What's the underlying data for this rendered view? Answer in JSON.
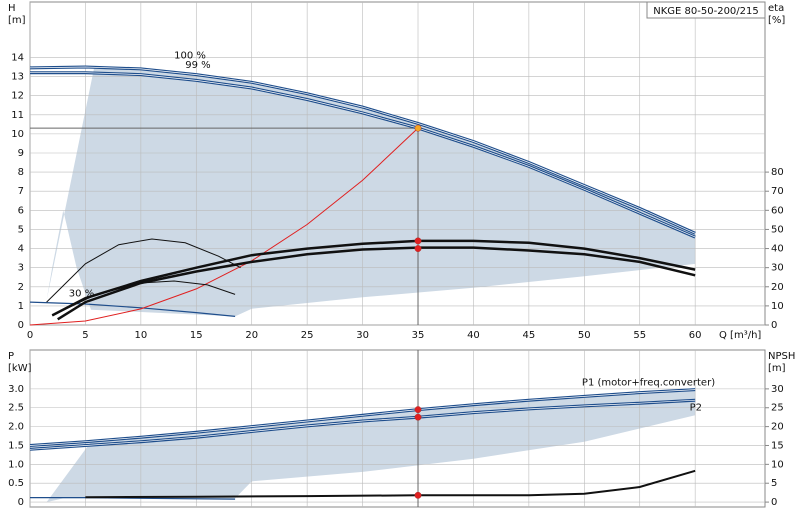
{
  "chart_data": [
    {
      "type": "line",
      "title": "NKGE 80-50-200/215",
      "ylabel": "H",
      "yunit": "[m]",
      "y2label": "eta",
      "y2unit": "[%]",
      "xlabel": "Q [m³/h]",
      "xlim": [
        0,
        66.3
      ],
      "ylim": [
        0,
        16.9
      ],
      "y2lim": [
        0,
        169
      ],
      "xticks": [
        0,
        5,
        10,
        15,
        20,
        25,
        30,
        35,
        40,
        45,
        50,
        55,
        60
      ],
      "yticks": [
        0,
        1,
        2,
        3,
        4,
        5,
        6,
        7,
        8,
        9,
        10,
        11,
        12,
        13,
        14
      ],
      "y2ticks": [
        0,
        10,
        20,
        30,
        40,
        50,
        60,
        70,
        80
      ],
      "grid": true,
      "xtick_labels": true,
      "region": {
        "color": "#cdd9e5",
        "x": [
          5.8,
          10,
          15,
          20,
          25,
          30,
          35,
          40,
          45,
          50,
          55,
          60,
          60,
          50,
          40,
          30,
          20,
          18.5,
          5.5,
          4.2,
          3,
          2,
          1.5
        ],
        "values": [
          13.5,
          13.4,
          13.1,
          12.7,
          12.1,
          11.4,
          10.55,
          9.6,
          8.5,
          7.3,
          6.1,
          4.85,
          3.2,
          2.55,
          1.95,
          1.45,
          0.85,
          0.45,
          0.8,
          3,
          6,
          3,
          1.3
        ]
      },
      "series": [
        {
          "color": "#1f4e8c",
          "width": 3,
          "x": [
            0,
            5,
            10,
            15,
            20,
            25,
            30,
            35,
            40,
            45,
            50,
            55,
            60
          ],
          "values": [
            13.45,
            13.5,
            13.4,
            13.1,
            12.7,
            12.1,
            11.4,
            10.55,
            9.6,
            8.5,
            7.3,
            6.1,
            4.8
          ]
        },
        {
          "color": "#1f4e8c",
          "width": 3,
          "x": [
            0,
            5,
            10,
            15,
            20,
            25,
            30,
            35,
            40,
            45,
            50,
            55,
            60
          ],
          "values": [
            13.2,
            13.2,
            13.1,
            12.8,
            12.4,
            11.8,
            11.1,
            10.3,
            9.35,
            8.3,
            7.1,
            5.85,
            4.6
          ]
        },
        {
          "color": "#1f4e8c",
          "width": 1.2,
          "x": [
            0,
            5,
            10,
            15,
            18.5
          ],
          "values": [
            1.2,
            1.1,
            0.9,
            0.65,
            0.45
          ]
        },
        {
          "color": "#e02020",
          "width": 1,
          "x": [
            0,
            5,
            10,
            15,
            20,
            25,
            30,
            35
          ],
          "values": [
            0,
            0.21,
            0.84,
            1.89,
            3.36,
            5.26,
            7.57,
            10.3
          ]
        },
        {
          "color": "#111111",
          "width": 2.5,
          "axis": "y2",
          "x": [
            2,
            5,
            10,
            15,
            20,
            25,
            30,
            35,
            40,
            45,
            50,
            55,
            60
          ],
          "values": [
            5,
            14,
            23,
            30,
            36.5,
            40,
            42.5,
            44,
            44,
            43,
            40,
            35,
            29
          ]
        },
        {
          "color": "#111111",
          "width": 2.5,
          "axis": "y2",
          "x": [
            2.5,
            5,
            10,
            15,
            20,
            25,
            30,
            35,
            40,
            45,
            50,
            55,
            60
          ],
          "values": [
            3,
            12,
            22,
            28,
            33,
            37,
            39.5,
            40.5,
            40.5,
            39,
            37,
            33,
            26
          ]
        },
        {
          "color": "#111111",
          "width": 1,
          "axis": "y2",
          "x": [
            1.5,
            5,
            8,
            11,
            14,
            17,
            19
          ],
          "values": [
            12,
            32,
            42,
            45,
            43,
            36,
            30
          ]
        },
        {
          "color": "#111111",
          "width": 1,
          "axis": "y2",
          "x": [
            2,
            6,
            10,
            13,
            16,
            18.5
          ],
          "values": [
            5,
            16,
            22,
            23,
            21,
            16
          ]
        }
      ],
      "points": {
        "x": [
          35,
          35,
          35
        ],
        "values": [
          10.3,
          44,
          40
        ],
        "axes": [
          "y",
          "y2",
          "y2"
        ],
        "colors": [
          "#f5a623",
          "#e02020",
          "#e02020"
        ]
      },
      "annotations": [
        "100 %",
        "99 %",
        "30 %"
      ]
    },
    {
      "type": "line",
      "ylabel": "P",
      "yunit": "[kW]",
      "y2label": "NPSH",
      "y2unit": "[m]",
      "xlim": [
        0,
        66.3
      ],
      "ylim": [
        -0.13,
        4.03
      ],
      "y2lim": [
        -1.3,
        40.3
      ],
      "xticks": [
        0,
        5,
        10,
        15,
        20,
        25,
        30,
        35,
        40,
        45,
        50,
        55,
        60
      ],
      "yticks": [
        0,
        0.5,
        {
          "value": 1,
          "label": "1.0"
        },
        1.5,
        {
          "value": 2,
          "label": "2.0"
        },
        2.5,
        {
          "value": 3,
          "label": "3.0"
        }
      ],
      "y2ticks": [
        0,
        5,
        10,
        15,
        20,
        25,
        30
      ],
      "grid": true,
      "xtick_labels": false,
      "region": {
        "color": "#cdd9e5",
        "x": [
          5.5,
          10,
          15,
          20,
          25,
          30,
          35,
          40,
          45,
          50,
          55,
          60,
          60,
          50,
          40,
          30,
          20,
          18.5,
          3,
          1.5
        ],
        "values": [
          1.6,
          1.72,
          1.85,
          2.0,
          2.15,
          2.3,
          2.45,
          2.58,
          2.7,
          2.8,
          2.9,
          2.98,
          2.3,
          1.6,
          1.15,
          0.8,
          0.55,
          0.1,
          0.1,
          0
        ]
      },
      "series": [
        {
          "color": "#1f4e8c",
          "width": 3,
          "x": [
            0,
            5,
            10,
            15,
            20,
            25,
            30,
            35,
            40,
            45,
            50,
            55,
            60
          ],
          "values": [
            1.5,
            1.6,
            1.72,
            1.85,
            2.0,
            2.15,
            2.3,
            2.45,
            2.58,
            2.7,
            2.8,
            2.9,
            2.98
          ]
        },
        {
          "color": "#1f4e8c",
          "width": 3,
          "x": [
            0,
            5,
            10,
            15,
            20,
            25,
            30,
            35,
            40,
            45,
            50,
            55,
            60
          ],
          "values": [
            1.4,
            1.5,
            1.6,
            1.72,
            1.87,
            2.02,
            2.15,
            2.25,
            2.37,
            2.47,
            2.55,
            2.62,
            2.7
          ]
        },
        {
          "color": "#1f4e8c",
          "width": 1.2,
          "x": [
            0,
            5,
            10,
            18.5
          ],
          "values": [
            0.12,
            0.12,
            0.1,
            0.08
          ]
        },
        {
          "color": "#111111",
          "width": 2,
          "axis": "y2",
          "x": [
            5,
            15,
            25,
            35,
            45,
            50,
            55,
            60
          ],
          "values": [
            1.3,
            1.4,
            1.6,
            1.8,
            1.8,
            2.2,
            4,
            8.3
          ]
        }
      ],
      "points": {
        "x": [
          35,
          35,
          35
        ],
        "values": [
          2.45,
          2.25,
          1.8
        ],
        "axes": [
          "y",
          "y",
          "y2"
        ],
        "colors": [
          "#e02020",
          "#e02020",
          "#e02020"
        ]
      },
      "annotations": [
        "P1 (motor+freq.converter)",
        "P2"
      ]
    }
  ]
}
